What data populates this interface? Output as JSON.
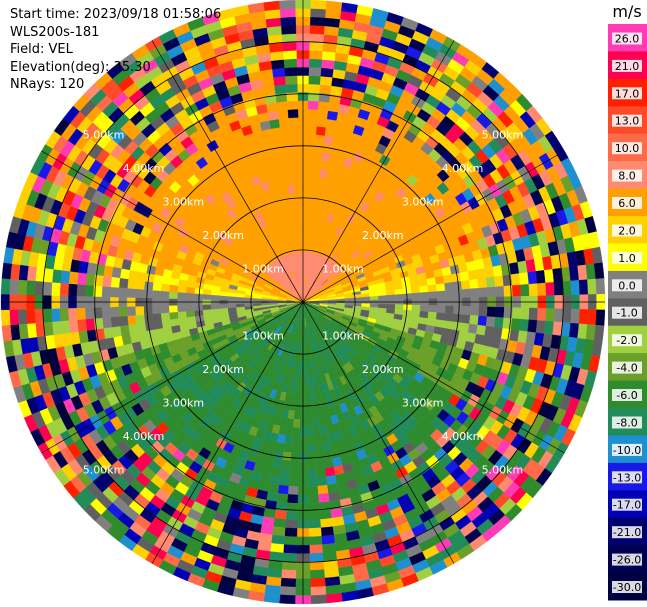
{
  "info": {
    "start_time": "Start time: 2023/09/18 01:58:06",
    "instrument": "WLS200s-181",
    "field": "Field: VEL",
    "elevation": "Elevation(deg): 35.30",
    "nrays": "NRays: 120"
  },
  "chart_data": {
    "type": "heatmap",
    "subtype": "polar-ppi",
    "field": "VEL",
    "nrays": 120,
    "range_ring_labels": [
      "1.00km",
      "2.00km",
      "3.00km",
      "4.00km",
      "5.00km"
    ],
    "range_rings_km": [
      1,
      2,
      3,
      4,
      5
    ],
    "max_range_km": 5.8,
    "spoke_count": 12,
    "colorbar": {
      "unit": "m/s",
      "ticks": [
        "26.0",
        "21.0",
        "17.0",
        "13.0",
        "10.0",
        "8.0",
        "6.0",
        "2.0",
        "1.0",
        "0.0",
        "-1.0",
        "-2.0",
        "-4.0",
        "-6.0",
        "-8.0",
        "-10.0",
        "-13.0",
        "-17.0",
        "-21.0",
        "-26.0",
        "-30.0"
      ],
      "colors": [
        "#ff3cb4",
        "#ff0050",
        "#ff2000",
        "#ff4a2a",
        "#ff6a48",
        "#ff8a70",
        "#ffa000",
        "#ffd000",
        "#ffff00",
        "#808080",
        "#606060",
        "#a0d040",
        "#6aa02a",
        "#2e8b2e",
        "#228b5a",
        "#1e90d0",
        "#1818e8",
        "#0000b4",
        "#00006e",
        "#000050",
        "#000040"
      ]
    },
    "pattern": [
      {
        "sector": "north",
        "near_km": [
          0,
          1.0
        ],
        "value": 8.0
      },
      {
        "sector": "north",
        "near_km": [
          1.0,
          3.5
        ],
        "value": 6.0
      },
      {
        "sector": "east-west-north",
        "value": 2.0
      },
      {
        "sector": "horizon",
        "value": 0.0
      },
      {
        "sector": "south-west",
        "value": -2.0
      },
      {
        "sector": "south",
        "value": -6.0
      },
      {
        "sector": "outer",
        "near_km": [
          4.0,
          5.8
        ],
        "value": "noise"
      }
    ]
  }
}
